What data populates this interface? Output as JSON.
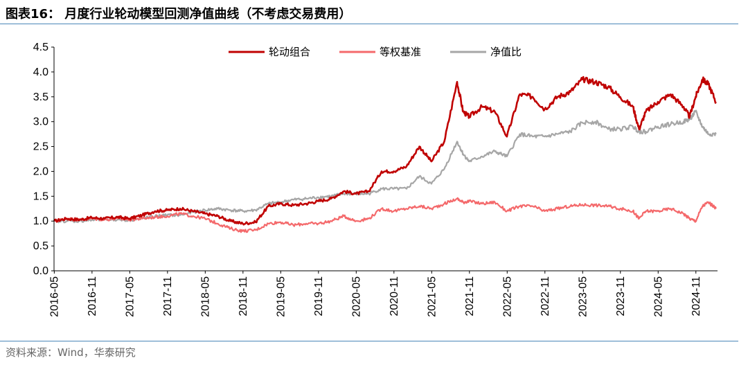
{
  "header": {
    "title": "图表16：  月度行业轮动模型回测净值曲线（不考虑交易费用）"
  },
  "footer": {
    "source": "资料来源：Wind，华泰研究"
  },
  "chart_data": {
    "type": "line",
    "title": "月度行业轮动模型回测净值曲线（不考虑交易费用）",
    "xlabel": "",
    "ylabel": "",
    "ylim": [
      0,
      4.5
    ],
    "yticks": [
      "0.0",
      "0.5",
      "1.0",
      "1.5",
      "2.0",
      "2.5",
      "3.0",
      "3.5",
      "4.0",
      "4.5"
    ],
    "xticks": [
      "2016-05",
      "2016-11",
      "2017-05",
      "2017-11",
      "2018-05",
      "2018-11",
      "2019-05",
      "2019-11",
      "2020-05",
      "2020-11",
      "2021-05",
      "2021-11",
      "2022-05",
      "2022-11",
      "2023-05",
      "2023-11",
      "2024-05",
      "2024-11"
    ],
    "legend_position": "top",
    "x": [
      2016.33,
      2016.5,
      2016.67,
      2016.83,
      2017.0,
      2017.17,
      2017.33,
      2017.5,
      2017.67,
      2017.83,
      2018.0,
      2018.17,
      2018.33,
      2018.5,
      2018.67,
      2018.83,
      2019.0,
      2019.17,
      2019.33,
      2019.5,
      2019.67,
      2019.83,
      2020.0,
      2020.17,
      2020.33,
      2020.5,
      2020.67,
      2020.83,
      2021.0,
      2021.17,
      2021.33,
      2021.5,
      2021.67,
      2021.75,
      2021.83,
      2022.0,
      2022.17,
      2022.33,
      2022.5,
      2022.67,
      2022.83,
      2023.0,
      2023.17,
      2023.33,
      2023.5,
      2023.67,
      2023.83,
      2024.0,
      2024.08,
      2024.17,
      2024.33,
      2024.5,
      2024.67,
      2024.75,
      2024.83,
      2024.92,
      2025.0,
      2025.1
    ],
    "series": [
      {
        "name": "轮动组合",
        "color": "#c00000",
        "values": [
          1.0,
          1.05,
          1.03,
          1.07,
          1.05,
          1.08,
          1.05,
          1.12,
          1.2,
          1.22,
          1.25,
          1.2,
          1.15,
          1.1,
          1.0,
          0.95,
          0.98,
          1.3,
          1.35,
          1.32,
          1.35,
          1.4,
          1.45,
          1.6,
          1.55,
          1.6,
          2.0,
          2.0,
          2.1,
          2.5,
          2.2,
          2.6,
          3.8,
          3.2,
          3.1,
          3.3,
          3.2,
          2.7,
          3.55,
          3.5,
          3.25,
          3.5,
          3.6,
          3.85,
          3.8,
          3.7,
          3.5,
          3.3,
          2.85,
          3.2,
          3.4,
          3.55,
          3.3,
          3.1,
          3.5,
          3.85,
          3.75,
          3.4
        ]
      },
      {
        "name": "等权基准",
        "color": "#f4696b",
        "values": [
          1.0,
          1.05,
          1.02,
          1.05,
          1.03,
          1.05,
          1.03,
          1.05,
          1.08,
          1.1,
          1.15,
          1.1,
          1.05,
          0.95,
          0.85,
          0.8,
          0.82,
          0.95,
          0.98,
          0.92,
          0.95,
          0.95,
          1.0,
          1.1,
          1.0,
          1.05,
          1.25,
          1.2,
          1.25,
          1.3,
          1.25,
          1.35,
          1.45,
          1.38,
          1.4,
          1.35,
          1.38,
          1.2,
          1.3,
          1.3,
          1.2,
          1.25,
          1.3,
          1.33,
          1.32,
          1.3,
          1.25,
          1.2,
          1.05,
          1.2,
          1.2,
          1.25,
          1.15,
          1.05,
          1.0,
          1.3,
          1.38,
          1.25
        ]
      },
      {
        "name": "净值比",
        "color": "#a6a6a6",
        "values": [
          1.0,
          1.0,
          1.0,
          1.02,
          1.03,
          1.03,
          1.02,
          1.05,
          1.1,
          1.12,
          1.12,
          1.18,
          1.22,
          1.25,
          1.22,
          1.2,
          1.22,
          1.35,
          1.38,
          1.43,
          1.45,
          1.48,
          1.5,
          1.55,
          1.55,
          1.55,
          1.65,
          1.65,
          1.65,
          1.9,
          1.75,
          2.05,
          2.6,
          2.35,
          2.2,
          2.3,
          2.4,
          2.3,
          2.75,
          2.7,
          2.7,
          2.75,
          2.8,
          2.98,
          3.0,
          2.85,
          2.85,
          2.9,
          2.8,
          2.8,
          2.9,
          2.95,
          3.0,
          3.05,
          3.2,
          2.9,
          2.75,
          2.75
        ]
      }
    ]
  }
}
